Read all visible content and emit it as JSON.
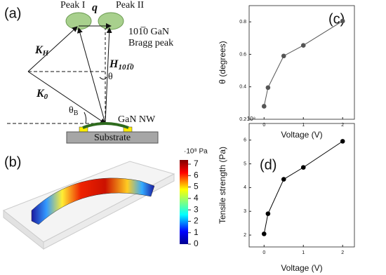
{
  "panels": {
    "a": {
      "label": "(a)",
      "peak_1": "Peak I",
      "peak_2": "Peak II",
      "q": "q",
      "bragg_1": "101̅0 GaN",
      "bragg_2": "Bragg peak",
      "k_h": {
        "main": "K",
        "sub": "H"
      },
      "h": {
        "main": "H",
        "sub": "101̅0"
      },
      "theta": "θ",
      "k_0": {
        "main": "K",
        "sub": "0"
      },
      "theta_b": {
        "main": "θ",
        "sub": "B"
      },
      "nw": "GaN NW",
      "substrate": "Substrate"
    },
    "b": {
      "label": "(b)",
      "colorbar": {
        "label": "·10⁸ Pa",
        "lim": [
          0,
          7
        ],
        "ticks": [
          0,
          1,
          2,
          3,
          4,
          5,
          6,
          7
        ]
      }
    },
    "c": {
      "label": "(c)"
    },
    "d": {
      "label": "(d)"
    }
  },
  "chart_data": [
    {
      "type": "line",
      "x": [
        0,
        0.1,
        0.5,
        1,
        2
      ],
      "values": [
        0.28,
        0.395,
        0.59,
        0.655,
        0.805
      ],
      "color": "#555555",
      "xlabel": "Voltage (V)",
      "ylabel": "θ (degrees)",
      "xlim": [
        -0.38,
        2.3
      ],
      "xticks": [
        0,
        1,
        2
      ],
      "ylim": [
        0.2,
        0.9
      ],
      "yticks": [
        {
          "value": 0.2,
          "label": "0.2"
        },
        {
          "value": 0.4,
          "label": "0.4"
        },
        {
          "value": 0.6,
          "label": "0.6"
        },
        {
          "value": 0.8,
          "label": "0.8"
        }
      ]
    },
    {
      "type": "line",
      "x": [
        0,
        0.1,
        0.5,
        1,
        2
      ],
      "values": [
        2.05,
        2.9,
        4.35,
        4.85,
        5.95
      ],
      "color": "#000000",
      "xlabel": "Voltage (V)",
      "ylabel": "Tensile strength (Pa)",
      "y_multiplier": "·10⁸",
      "xlim": [
        -0.38,
        2.3
      ],
      "xticks": [
        0,
        1,
        2
      ],
      "ylim": [
        1.5,
        6.7
      ],
      "yticks": [
        2,
        3,
        4,
        5,
        6
      ]
    }
  ]
}
